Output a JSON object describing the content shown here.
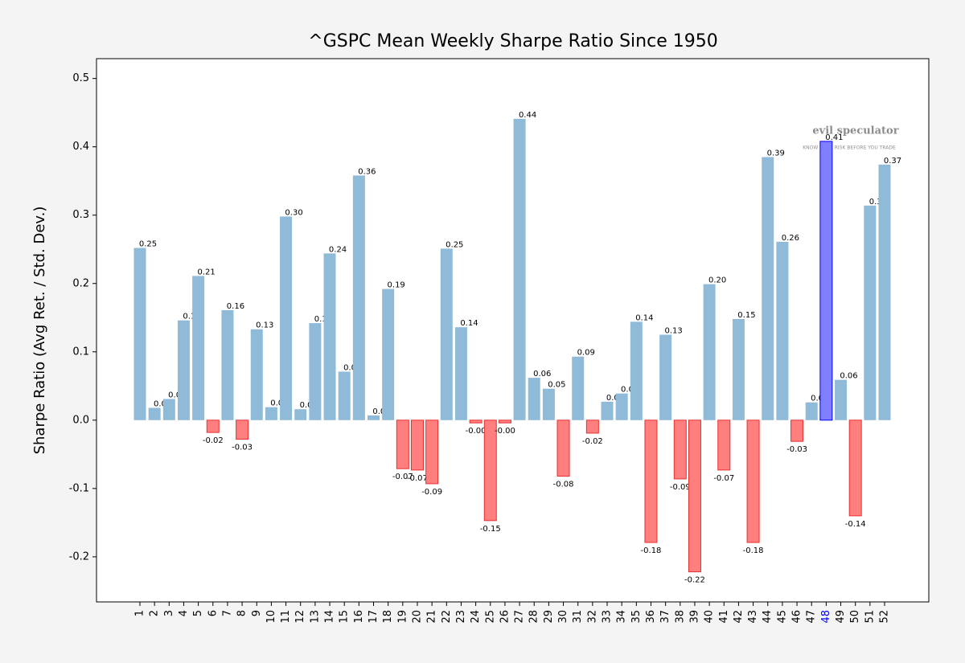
{
  "chart_data": {
    "type": "bar",
    "title": "^GSPC Mean Weekly Sharpe Ratio Since 1950",
    "y_label": "Sharpe Ratio (Avg Ret. / Std. Dev.)",
    "categories": [
      "1",
      "2",
      "3",
      "4",
      "5",
      "6",
      "7",
      "8",
      "9",
      "10",
      "11",
      "12",
      "13",
      "14",
      "15",
      "16",
      "17",
      "18",
      "19",
      "20",
      "21",
      "22",
      "23",
      "24",
      "25",
      "26",
      "27",
      "28",
      "29",
      "30",
      "31",
      "32",
      "33",
      "34",
      "35",
      "36",
      "37",
      "38",
      "39",
      "40",
      "41",
      "42",
      "43",
      "44",
      "45",
      "46",
      "47",
      "48",
      "49",
      "50",
      "51",
      "52"
    ],
    "values": [
      0.252,
      0.018,
      0.031,
      0.146,
      0.211,
      -0.018,
      0.161,
      -0.028,
      0.133,
      0.019,
      0.298,
      0.016,
      0.142,
      0.244,
      0.071,
      0.358,
      0.007,
      0.192,
      -0.071,
      -0.073,
      -0.093,
      0.251,
      0.136,
      -0.004,
      -0.147,
      -0.004,
      0.441,
      0.062,
      0.046,
      -0.082,
      0.093,
      -0.019,
      0.027,
      0.039,
      0.144,
      -0.179,
      0.125,
      -0.086,
      -0.222,
      0.199,
      -0.073,
      0.148,
      -0.179,
      0.385,
      0.261,
      -0.031,
      0.026,
      0.408,
      0.059,
      -0.14,
      0.314,
      0.374
    ],
    "value_labels": [
      "0.25",
      "0.02",
      "0.03",
      "0.15",
      "0.21",
      "-0.02",
      "0.16",
      "-0.03",
      "0.13",
      "0.02",
      "0.30",
      "0.02",
      "0.14",
      "0.24",
      "0.07",
      "0.36",
      "0.01",
      "0.19",
      "-0.07",
      "-0.07",
      "-0.09",
      "0.25",
      "0.14",
      "-0.00",
      "-0.15",
      "-0.00",
      "0.44",
      "0.06",
      "0.05",
      "-0.08",
      "0.09",
      "-0.02",
      "0.03",
      "0.04",
      "0.14",
      "-0.18",
      "0.13",
      "-0.09",
      "-0.22",
      "0.20",
      "-0.07",
      "0.15",
      "-0.18",
      "0.39",
      "0.26",
      "-0.03",
      "0.03",
      "0.41",
      "0.06",
      "-0.14",
      "0.31",
      "0.37"
    ],
    "color_positive": "#8fbbd9",
    "color_negative": "#ff7f7f",
    "edge_negative": "#e83030",
    "highlight_category": "48",
    "highlight_color": "#8080ff",
    "highlight_edge": "#0000ff",
    "ylim": [
      -0.266,
      0.529
    ],
    "yticks": [
      {
        "value": -0.2,
        "label": "-0.2"
      },
      {
        "value": -0.1,
        "label": "-0.1"
      },
      {
        "value": 0,
        "label": "0.0"
      },
      {
        "value": 0.1,
        "label": "0.1"
      },
      {
        "value": 0.2,
        "label": "0.2"
      },
      {
        "value": 0.3,
        "label": "0.3"
      },
      {
        "value": 0.4,
        "label": "0.4"
      },
      {
        "value": 0.5,
        "label": "0.5"
      }
    ],
    "watermark": {
      "text": "evil speculator",
      "tagline": "KNOW YOUR RISK BEFORE YOU TRADE"
    }
  }
}
